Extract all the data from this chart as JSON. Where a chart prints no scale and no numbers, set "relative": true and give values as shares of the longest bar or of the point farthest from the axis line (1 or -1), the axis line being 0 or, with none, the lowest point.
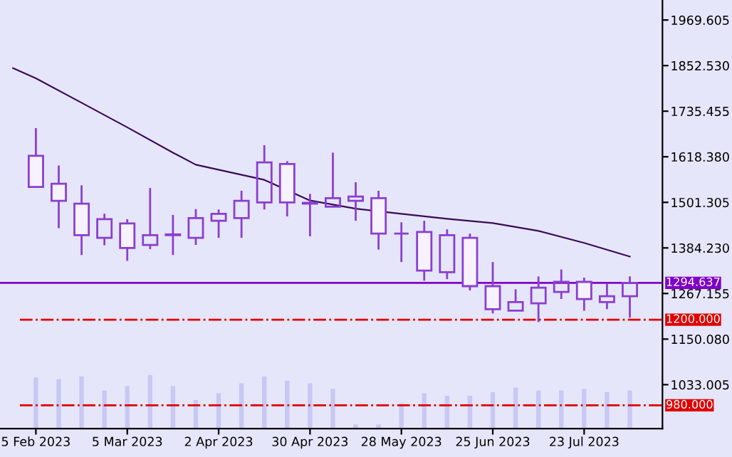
{
  "chart_data": [
    {
      "type": "candlestick",
      "color": "#8a3fd0",
      "x": [
        "2023-02-05",
        "2023-02-12",
        "2023-02-19",
        "2023-02-26",
        "2023-03-05",
        "2023-03-12",
        "2023-03-19",
        "2023-03-26",
        "2023-04-02",
        "2023-04-09",
        "2023-04-16",
        "2023-04-23",
        "2023-04-30",
        "2023-05-07",
        "2023-05-14",
        "2023-05-21",
        "2023-05-28",
        "2023-06-04",
        "2023-06-11",
        "2023-06-18",
        "2023-06-25",
        "2023-07-02",
        "2023-07-09",
        "2023-07-16",
        "2023-07-23",
        "2023-07-30",
        "2023-08-06"
      ],
      "ohlc": [
        [
          1621,
          1692,
          1541,
          1541
        ],
        [
          1549,
          1596,
          1435,
          1505
        ],
        [
          1498,
          1545,
          1366,
          1417
        ],
        [
          1410,
          1472,
          1391,
          1458
        ],
        [
          1447,
          1458,
          1351,
          1384
        ],
        [
          1392,
          1538,
          1381,
          1417
        ],
        [
          1417,
          1469,
          1366,
          1419
        ],
        [
          1410,
          1484,
          1392,
          1461
        ],
        [
          1454,
          1483,
          1410,
          1472
        ],
        [
          1461,
          1531,
          1410,
          1505
        ],
        [
          1501,
          1648,
          1483,
          1604
        ],
        [
          1600,
          1607,
          1465,
          1501
        ],
        [
          1498,
          1523,
          1414,
          1500
        ],
        [
          1490,
          1629,
          1490,
          1512
        ],
        [
          1505,
          1553,
          1454,
          1516
        ],
        [
          1512,
          1531,
          1380,
          1421
        ],
        [
          1421,
          1450,
          1348,
          1421
        ],
        [
          1425,
          1454,
          1300,
          1326
        ],
        [
          1322,
          1432,
          1304,
          1417
        ],
        [
          1410,
          1421,
          1275,
          1286
        ],
        [
          1286,
          1348,
          1216,
          1227
        ],
        [
          1223,
          1278,
          1223,
          1245
        ],
        [
          1242,
          1311,
          1194,
          1282
        ],
        [
          1271,
          1329,
          1253,
          1297
        ],
        [
          1297,
          1308,
          1223,
          1253
        ],
        [
          1245,
          1293,
          1227,
          1260
        ],
        [
          1260,
          1311,
          1205,
          1294.637
        ]
      ],
      "series": [
        {
          "type": "line",
          "color": "#3a0a5a",
          "x": [
            "2023-01-29",
            "2023-02-05",
            "2023-02-19",
            "2023-03-05",
            "2023-03-19",
            "2023-03-26",
            "2023-04-16",
            "2023-04-30",
            "2023-05-14",
            "2023-05-28",
            "2023-06-11",
            "2023-06-25",
            "2023-07-09",
            "2023-07-23",
            "2023-08-06"
          ],
          "values": [
            1846,
            1820,
            1757,
            1694,
            1629,
            1598,
            1559,
            1506,
            1485,
            1472,
            1459,
            1448,
            1428,
            1397,
            1362
          ]
        }
      ],
      "ylim": [
        920,
        2021
      ],
      "xlim": [
        "2023-01-25",
        "2023-08-16"
      ],
      "xticks": [
        {
          "value": "2023-02-05",
          "label": "5 Feb 2023"
        },
        {
          "value": "2023-03-05",
          "label": "5 Mar 2023"
        },
        {
          "value": "2023-04-02",
          "label": "2 Apr 2023"
        },
        {
          "value": "2023-04-30",
          "label": "30 Apr 2023"
        },
        {
          "value": "2023-05-28",
          "label": "28 May 2023"
        },
        {
          "value": "2023-06-25",
          "label": "25 Jun 2023"
        },
        {
          "value": "2023-07-23",
          "label": "23 Jul 2023"
        }
      ],
      "yticks": [
        {
          "value": 1969.605,
          "label": "1969.605"
        },
        {
          "value": 1852.53,
          "label": "1852.530"
        },
        {
          "value": 1735.455,
          "label": "1735.455"
        },
        {
          "value": 1618.38,
          "label": "1618.380"
        },
        {
          "value": 1501.305,
          "label": "1501.305"
        },
        {
          "value": 1384.23,
          "label": "1384.230"
        },
        {
          "value": 1267.155,
          "label": "1267.155"
        },
        {
          "value": 1150.08,
          "label": "1150.080"
        },
        {
          "value": 1033.005,
          "label": "1033.005"
        }
      ],
      "ref_lines": [
        {
          "axis": "y",
          "value": 1294.637,
          "label": "1294.637",
          "color": "#8000c8",
          "line_style": "solid"
        },
        {
          "axis": "y",
          "value": 1200,
          "label": "1200.000",
          "color": "#e00000",
          "line_style": "dashdot"
        },
        {
          "axis": "y",
          "value": 980,
          "label": "980.000",
          "color": "#e00000",
          "line_style": "dashdot"
        }
      ]
    },
    {
      "type": "bar",
      "relative": true,
      "color": "#c8c8f4",
      "categories": [
        null,
        null,
        null,
        null,
        null,
        null,
        null,
        null,
        null,
        null,
        null,
        null,
        null,
        null,
        null,
        null,
        null,
        null,
        null,
        null,
        null,
        null,
        null,
        null,
        null,
        null,
        null
      ],
      "values": [
        0.95,
        0.92,
        0.97,
        0.71,
        0.79,
        1,
        0.79,
        0.53,
        0.66,
        0.84,
        0.97,
        0.89,
        0.84,
        0.74,
        0.08,
        0.08,
        0.47,
        0.66,
        0.61,
        0.61,
        0.68,
        0.76,
        0.71,
        0.71,
        0.74,
        0.68,
        0.71
      ]
    }
  ]
}
